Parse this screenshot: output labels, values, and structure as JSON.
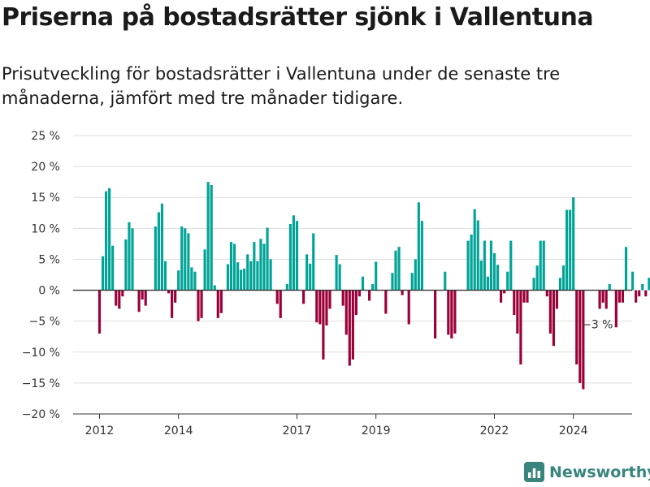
{
  "title": "Priserna på bostadsrätter sjönk i Vallentuna",
  "subtitle": "Prisutveckling för bostadsrätter i Vallentuna under de senaste tre månaderna, jämfört med tre månader tidigare.",
  "brand": {
    "name": "Newsworthy",
    "icon": "newsworthy-logo-icon",
    "color": "#37857c"
  },
  "colors": {
    "positive": "#00a497",
    "negative": "#9b0039",
    "grid": "#dddddd",
    "zero_line": "#333333"
  },
  "chart_data": {
    "type": "bar",
    "x_unit": "month",
    "start_month": "2012-01",
    "values": [
      -7,
      5.5,
      16,
      16.5,
      7.2,
      -2.5,
      -3,
      -1,
      8.2,
      11,
      10,
      0,
      -3.5,
      -1.5,
      -2.5,
      0,
      0,
      10.3,
      12.6,
      14,
      4.7,
      -0.5,
      -4.5,
      -2,
      3.2,
      10.3,
      10,
      9.2,
      3.7,
      3,
      -5,
      -4.5,
      6.6,
      17.5,
      17,
      0.8,
      -4.5,
      -3.7,
      0,
      4.2,
      7.8,
      7.5,
      4.5,
      3.3,
      3.5,
      5.8,
      4.7,
      7.8,
      4.7,
      8.3,
      7.5,
      10.1,
      5,
      0,
      -2.2,
      -4.5,
      0,
      1,
      10.7,
      12.1,
      11.2,
      0,
      -2.2,
      5.8,
      4.3,
      9.2,
      -5.2,
      -5.5,
      -11.2,
      -5.7,
      -3,
      0,
      5.7,
      4.2,
      -2.5,
      -7.2,
      -12.2,
      -11.2,
      -4,
      -1,
      2.2,
      0,
      -1.7,
      1,
      4.6,
      0,
      0,
      -3.8,
      0,
      2.8,
      6.4,
      7,
      -0.8,
      0,
      -5.5,
      2.8,
      5,
      14.2,
      11.2,
      0,
      0,
      0,
      -7.8,
      0,
      0,
      3,
      -7.2,
      -7.8,
      -7,
      0,
      0,
      0,
      8,
      9,
      13.1,
      11.3,
      4.8,
      8,
      2.2,
      8,
      6,
      4.1,
      -2,
      -0.5,
      3,
      8,
      -4,
      -7,
      -12,
      -2,
      -2,
      0,
      2,
      4,
      8,
      8,
      -1,
      -7,
      -9,
      -3,
      2,
      4,
      13,
      13,
      15,
      -12,
      -15,
      -16,
      0,
      0,
      0,
      0,
      -3,
      -2,
      -3,
      1,
      0,
      -6,
      -2,
      -2,
      7,
      0,
      3,
      -2,
      -1,
      1,
      -1,
      2,
      -3
    ],
    "ylim": [
      -20,
      25
    ],
    "yticks": [
      -20,
      -15,
      -10,
      -5,
      0,
      5,
      10,
      15,
      20,
      25
    ],
    "ytick_labels": [
      "−20 %",
      "−15 %",
      "−10 %",
      "−5 %",
      "0 %",
      "5 %",
      "10 %",
      "15 %",
      "20 %",
      "25 %"
    ],
    "xticks": [
      {
        "label": "2012",
        "date": "2012-01"
      },
      {
        "label": "2014",
        "date": "2014-01"
      },
      {
        "label": "2017",
        "date": "2017-01"
      },
      {
        "label": "2019",
        "date": "2019-01"
      },
      {
        "label": "2022",
        "date": "2022-01"
      },
      {
        "label": "2024",
        "date": "2024-01"
      }
    ],
    "annotation": {
      "text": "−3 %",
      "date": "2024-09"
    },
    "grid": true,
    "legend": "none",
    "xlabel": "",
    "ylabel": ""
  }
}
